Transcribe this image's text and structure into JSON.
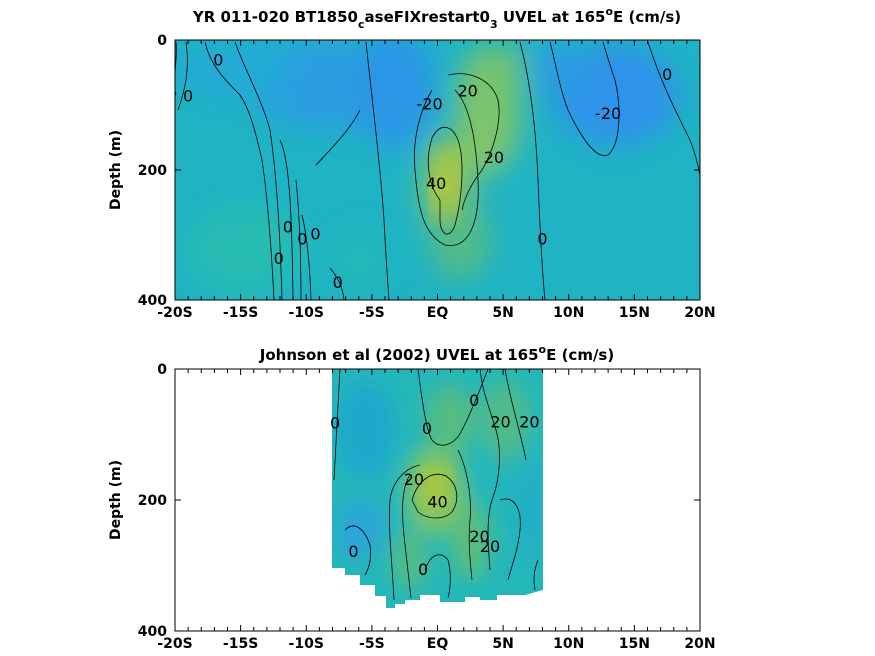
{
  "chart_data": [
    {
      "type": "heatmap",
      "title": {
        "main": "YR 011-020 BT1850",
        "sub1": "c",
        "mid": "aseFIXrestart0",
        "sub2": "3",
        "tail1": " UVEL at 165",
        "sup": "o",
        "tail2": "E (cm/s)"
      },
      "ylabel": "Depth (m)",
      "xlim": [
        -20,
        20
      ],
      "ylim": [
        0,
        400
      ],
      "y_reversed": true,
      "x_ticks": [
        -20,
        -15,
        -10,
        -5,
        0,
        5,
        10,
        15,
        20
      ],
      "x_tick_labels": [
        "-20S",
        "-15S",
        "-10S",
        "-5S",
        "EQ",
        "5N",
        "10N",
        "15N",
        "20N"
      ],
      "y_ticks": [
        0,
        200,
        400
      ],
      "y_tick_labels": [
        "0",
        "200",
        "400"
      ],
      "contour_levels": [
        -20,
        0,
        20,
        40
      ],
      "contour_labels": [
        {
          "text": "0",
          "x": -16.7,
          "y": 30
        },
        {
          "text": "0",
          "x": -19.0,
          "y": 85
        },
        {
          "text": "-20",
          "x": -0.6,
          "y": 98
        },
        {
          "text": "20",
          "x": 2.3,
          "y": 78
        },
        {
          "text": "-20",
          "x": 13.0,
          "y": 112
        },
        {
          "text": "0",
          "x": 17.5,
          "y": 52
        },
        {
          "text": "20",
          "x": 4.3,
          "y": 180
        },
        {
          "text": "40",
          "x": -0.1,
          "y": 220
        },
        {
          "text": "0",
          "x": -11.4,
          "y": 287
        },
        {
          "text": "0",
          "x": -10.3,
          "y": 305
        },
        {
          "text": "0",
          "x": -9.3,
          "y": 298
        },
        {
          "text": "0",
          "x": -12.1,
          "y": 335
        },
        {
          "text": "0",
          "x": -7.6,
          "y": 372
        },
        {
          "text": "0",
          "x": 8.0,
          "y": 305
        }
      ]
    },
    {
      "type": "heatmap",
      "title": {
        "main": "Johnson et al (2002) UVEL at 165",
        "sup": "o",
        "tail": "E (cm/s)"
      },
      "ylabel": "Depth (m)",
      "xlim": [
        -20,
        20
      ],
      "ylim": [
        0,
        400
      ],
      "y_reversed": true,
      "data_extent_x": [
        -8,
        8
      ],
      "x_ticks": [
        -20,
        -15,
        -10,
        -5,
        0,
        5,
        10,
        15,
        20
      ],
      "x_tick_labels": [
        "-20S",
        "-15S",
        "-10S",
        "-5S",
        "EQ",
        "5N",
        "10N",
        "15N",
        "20N"
      ],
      "y_ticks": [
        0,
        200,
        400
      ],
      "y_tick_labels": [
        "0",
        "200",
        "400"
      ],
      "contour_levels": [
        0,
        20,
        40
      ],
      "contour_labels": [
        {
          "text": "0",
          "x": -7.8,
          "y": 82
        },
        {
          "text": "0",
          "x": -0.8,
          "y": 90
        },
        {
          "text": "0",
          "x": 2.8,
          "y": 47
        },
        {
          "text": "20",
          "x": 4.8,
          "y": 80
        },
        {
          "text": "20",
          "x": 7.0,
          "y": 80
        },
        {
          "text": "20",
          "x": -1.8,
          "y": 168
        },
        {
          "text": "40",
          "x": 0.0,
          "y": 202
        },
        {
          "text": "20",
          "x": 3.2,
          "y": 255
        },
        {
          "text": "20",
          "x": 4.0,
          "y": 270
        },
        {
          "text": "0",
          "x": -6.4,
          "y": 278
        },
        {
          "text": "0",
          "x": -1.1,
          "y": 305
        }
      ]
    }
  ]
}
